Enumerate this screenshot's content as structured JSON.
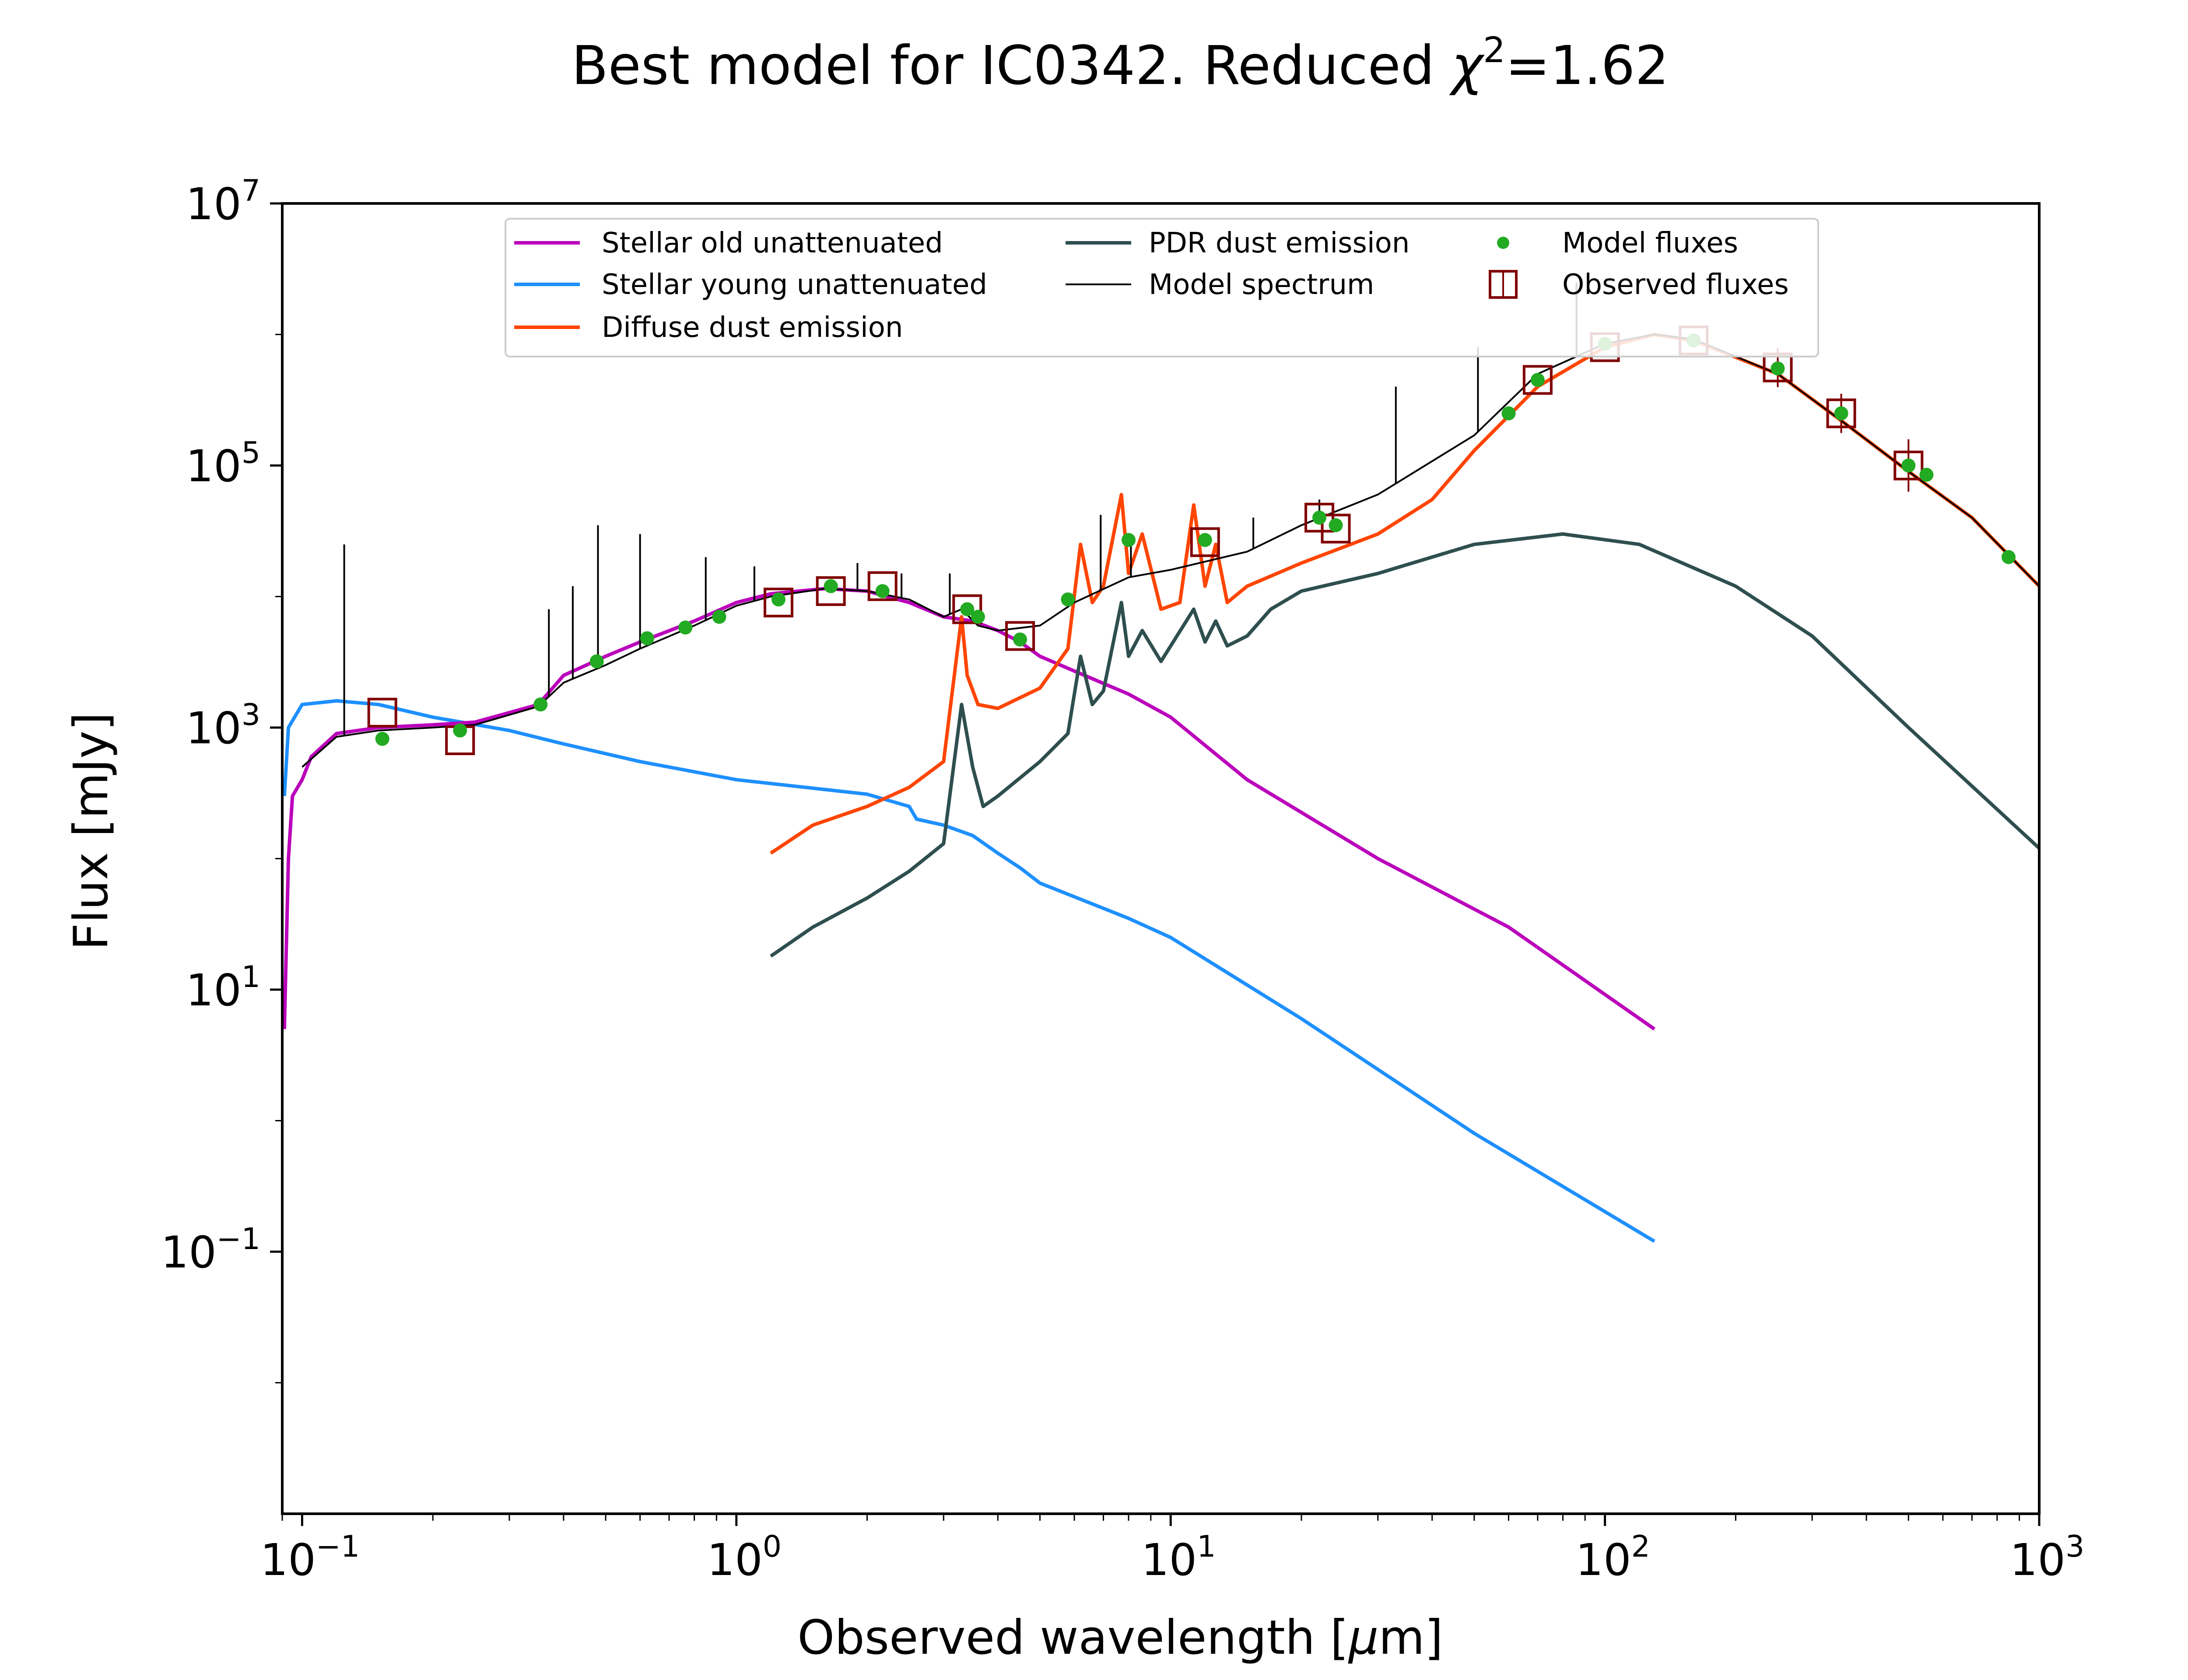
{
  "chart_data": {
    "type": "line",
    "title": "Best model for IC0342. Reduced χ²=1.62",
    "title_parts": {
      "prefix": "Best model for IC0342. Reduced ",
      "symbol": "χ",
      "power": "2",
      "suffix": "=1.62"
    },
    "xlabel": "Observed wavelength [μm]",
    "xlabel_parts": {
      "prefix": "Observed wavelength [",
      "symbol": "μ",
      "suffix": "m]"
    },
    "ylabel": "Flux [mJy]",
    "xscale": "log",
    "yscale": "log",
    "xlim": [
      0.09,
      1000
    ],
    "ylim": [
      0.001,
      10000000
    ],
    "xticks": [
      {
        "value": 0.1,
        "base": "10",
        "exp": "−1"
      },
      {
        "value": 1,
        "base": "10",
        "exp": "0"
      },
      {
        "value": 10,
        "base": "10",
        "exp": "1"
      },
      {
        "value": 100,
        "base": "10",
        "exp": "2"
      },
      {
        "value": 1000,
        "base": "10",
        "exp": "3"
      }
    ],
    "yticks": [
      {
        "value": 0.1,
        "base": "10",
        "exp": "−1"
      },
      {
        "value": 10,
        "base": "10",
        "exp": "1"
      },
      {
        "value": 1000,
        "base": "10",
        "exp": "3"
      },
      {
        "value": 100000,
        "base": "10",
        "exp": "5"
      },
      {
        "value": 10000000,
        "base": "10",
        "exp": "7"
      }
    ],
    "grid": false,
    "legend_position": "top-center",
    "legend": [
      {
        "label": "Stellar old unattenuated",
        "type": "line",
        "color": "#bb00bb"
      },
      {
        "label": "Stellar young unattenuated",
        "type": "line",
        "color": "#1e90ff"
      },
      {
        "label": "Diffuse dust emission",
        "type": "line",
        "color": "#ff4500"
      },
      {
        "label": "PDR dust emission",
        "type": "line",
        "color": "#2f4f4f"
      },
      {
        "label": "Model spectrum",
        "type": "line",
        "color": "#000000"
      },
      {
        "label": "Model fluxes",
        "type": "dot",
        "color": "#22aa22"
      },
      {
        "label": "Observed fluxes",
        "type": "square",
        "color": "#800000"
      }
    ],
    "series": [
      {
        "name": "Stellar old unattenuated",
        "color": "#bb00bb",
        "points": [
          [
            0.091,
            5
          ],
          [
            0.093,
            100
          ],
          [
            0.095,
            300
          ],
          [
            0.1,
            400
          ],
          [
            0.105,
            600
          ],
          [
            0.12,
            900
          ],
          [
            0.15,
            1000
          ],
          [
            0.2,
            1050
          ],
          [
            0.25,
            1100
          ],
          [
            0.3,
            1300
          ],
          [
            0.35,
            1500
          ],
          [
            0.4,
            2500
          ],
          [
            0.5,
            3500
          ],
          [
            0.6,
            4500
          ],
          [
            0.8,
            6500
          ],
          [
            1.0,
            9000
          ],
          [
            1.2,
            10500
          ],
          [
            1.6,
            11500
          ],
          [
            2.0,
            11000
          ],
          [
            2.5,
            9000
          ],
          [
            3.0,
            7000
          ],
          [
            3.5,
            6500
          ],
          [
            4.0,
            5500
          ],
          [
            4.5,
            4500
          ],
          [
            5.0,
            3500
          ],
          [
            6.0,
            2700
          ],
          [
            8.0,
            1800
          ],
          [
            10,
            1200
          ],
          [
            15,
            400
          ],
          [
            30,
            100
          ],
          [
            60,
            30
          ],
          [
            130,
            5
          ]
        ]
      },
      {
        "name": "Stellar young unattenuated",
        "color": "#1e90ff",
        "points": [
          [
            0.091,
            300
          ],
          [
            0.093,
            1000
          ],
          [
            0.1,
            1500
          ],
          [
            0.12,
            1600
          ],
          [
            0.15,
            1500
          ],
          [
            0.2,
            1200
          ],
          [
            0.3,
            950
          ],
          [
            0.4,
            750
          ],
          [
            0.6,
            550
          ],
          [
            1.0,
            400
          ],
          [
            2.0,
            310
          ],
          [
            2.5,
            250
          ],
          [
            2.6,
            200
          ],
          [
            3.0,
            180
          ],
          [
            3.5,
            150
          ],
          [
            4.0,
            110
          ],
          [
            4.5,
            85
          ],
          [
            5.0,
            65
          ],
          [
            8.0,
            35
          ],
          [
            10,
            25
          ],
          [
            20,
            6
          ],
          [
            50,
            0.8
          ],
          [
            130,
            0.12
          ]
        ]
      },
      {
        "name": "Diffuse dust emission",
        "color": "#ff4500",
        "points": [
          [
            1.2,
            110
          ],
          [
            1.5,
            180
          ],
          [
            2.0,
            250
          ],
          [
            2.5,
            350
          ],
          [
            3.0,
            550
          ],
          [
            3.3,
            7000
          ],
          [
            3.4,
            2500
          ],
          [
            3.6,
            1500
          ],
          [
            4.0,
            1400
          ],
          [
            5.0,
            2000
          ],
          [
            5.8,
            4000
          ],
          [
            6.2,
            25000
          ],
          [
            6.6,
            9000
          ],
          [
            7.0,
            12000
          ],
          [
            7.7,
            60000
          ],
          [
            8.0,
            15000
          ],
          [
            8.6,
            30000
          ],
          [
            9.5,
            8000
          ],
          [
            10.5,
            9000
          ],
          [
            11.3,
            50000
          ],
          [
            12,
            12000
          ],
          [
            12.7,
            25000
          ],
          [
            13.5,
            9000
          ],
          [
            15,
            12000
          ],
          [
            20,
            18000
          ],
          [
            30,
            30000
          ],
          [
            40,
            55000
          ],
          [
            50,
            130000
          ],
          [
            70,
            400000
          ],
          [
            100,
            800000
          ],
          [
            130,
            1000000
          ],
          [
            160,
            900000
          ],
          [
            250,
            500000
          ],
          [
            350,
            220000
          ],
          [
            500,
            90000
          ],
          [
            700,
            40000
          ],
          [
            1000,
            12000
          ]
        ]
      },
      {
        "name": "PDR dust emission",
        "color": "#2f4f4f",
        "points": [
          [
            1.2,
            18
          ],
          [
            1.5,
            30
          ],
          [
            2.0,
            50
          ],
          [
            2.5,
            80
          ],
          [
            3.0,
            130
          ],
          [
            3.3,
            1500
          ],
          [
            3.5,
            500
          ],
          [
            3.7,
            250
          ],
          [
            4.0,
            300
          ],
          [
            5.0,
            550
          ],
          [
            5.8,
            900
          ],
          [
            6.2,
            3500
          ],
          [
            6.6,
            1500
          ],
          [
            7.0,
            1900
          ],
          [
            7.7,
            9000
          ],
          [
            8.0,
            3500
          ],
          [
            8.6,
            5500
          ],
          [
            9.5,
            3200
          ],
          [
            11.3,
            8000
          ],
          [
            12,
            4500
          ],
          [
            12.7,
            6500
          ],
          [
            13.5,
            4200
          ],
          [
            15,
            5000
          ],
          [
            17,
            8000
          ],
          [
            20,
            11000
          ],
          [
            30,
            15000
          ],
          [
            50,
            25000
          ],
          [
            80,
            30000
          ],
          [
            120,
            25000
          ],
          [
            200,
            12000
          ],
          [
            300,
            5000
          ],
          [
            500,
            1000
          ],
          [
            1000,
            120
          ]
        ]
      },
      {
        "name": "Model spectrum",
        "color": "#000000",
        "points": [
          [
            0.1,
            500
          ],
          [
            0.12,
            850
          ],
          [
            0.15,
            950
          ],
          [
            0.2,
            1000
          ],
          [
            0.25,
            1050
          ],
          [
            0.3,
            1250
          ],
          [
            0.35,
            1450
          ],
          [
            0.4,
            2200
          ],
          [
            0.5,
            3000
          ],
          [
            0.6,
            4000
          ],
          [
            0.8,
            6000
          ],
          [
            1.0,
            8500
          ],
          [
            1.2,
            10000
          ],
          [
            1.6,
            11500
          ],
          [
            2.0,
            11000
          ],
          [
            2.5,
            9500
          ],
          [
            3.0,
            7000
          ],
          [
            3.3,
            8000
          ],
          [
            3.6,
            6000
          ],
          [
            4.0,
            5500
          ],
          [
            5.0,
            6000
          ],
          [
            6.0,
            9000
          ],
          [
            8.0,
            14000
          ],
          [
            10,
            16000
          ],
          [
            15,
            22000
          ],
          [
            20,
            35000
          ],
          [
            30,
            60000
          ],
          [
            50,
            170000
          ],
          [
            70,
            500000
          ],
          [
            100,
            850000
          ],
          [
            130,
            1000000
          ],
          [
            160,
            920000
          ],
          [
            250,
            500000
          ],
          [
            350,
            220000
          ],
          [
            500,
            90000
          ],
          [
            700,
            40000
          ],
          [
            1000,
            12000
          ]
        ],
        "lines": [
          [
            0.125,
            25000
          ],
          [
            0.37,
            8000
          ],
          [
            0.42,
            12000
          ],
          [
            0.48,
            35000
          ],
          [
            0.6,
            30000
          ],
          [
            0.85,
            20000
          ],
          [
            1.1,
            17000
          ],
          [
            1.9,
            18000
          ],
          [
            2.4,
            15000
          ],
          [
            3.1,
            15000
          ],
          [
            6.9,
            42000
          ],
          [
            8.1,
            28000
          ],
          [
            15.5,
            40000
          ],
          [
            22,
            55000
          ],
          [
            33,
            400000
          ],
          [
            51,
            800000
          ],
          [
            86,
            2500000
          ]
        ]
      }
    ],
    "model_fluxes": [
      [
        0.153,
        820
      ],
      [
        0.231,
        950
      ],
      [
        0.354,
        1500
      ],
      [
        0.477,
        3200
      ],
      [
        0.623,
        4800
      ],
      [
        0.763,
        5800
      ],
      [
        0.913,
        7000
      ],
      [
        1.25,
        9500
      ],
      [
        1.65,
        12000
      ],
      [
        2.17,
        11000
      ],
      [
        3.4,
        8000
      ],
      [
        3.6,
        7000
      ],
      [
        4.5,
        4700
      ],
      [
        5.8,
        9500
      ],
      [
        8.0,
        27000
      ],
      [
        12,
        27000
      ],
      [
        22,
        40000
      ],
      [
        24,
        35000
      ],
      [
        60,
        250000
      ],
      [
        70,
        450000
      ],
      [
        100,
        850000
      ],
      [
        160,
        900000
      ],
      [
        250,
        550000
      ],
      [
        350,
        250000
      ],
      [
        500,
        100000
      ],
      [
        550,
        85000
      ],
      [
        850,
        20000
      ]
    ],
    "observed_fluxes": [
      {
        "x": 0.153,
        "y": 1300,
        "err": 0
      },
      {
        "x": 0.231,
        "y": 800,
        "err": 0
      },
      {
        "x": 1.25,
        "y": 9000,
        "err": 0
      },
      {
        "x": 1.65,
        "y": 11000,
        "err": 0
      },
      {
        "x": 2.17,
        "y": 12000,
        "err": 0
      },
      {
        "x": 3.4,
        "y": 8000,
        "err": 0
      },
      {
        "x": 4.5,
        "y": 5000,
        "err": 0
      },
      {
        "x": 12,
        "y": 26000,
        "err": 0
      },
      {
        "x": 22,
        "y": 40000,
        "err": 0
      },
      {
        "x": 24,
        "y": 33000,
        "err": 0
      },
      {
        "x": 70,
        "y": 450000,
        "err": 0
      },
      {
        "x": 100,
        "y": 800000,
        "err": 0
      },
      {
        "x": 160,
        "y": 900000,
        "err": 0
      },
      {
        "x": 250,
        "y": 560000,
        "err": 0.15
      },
      {
        "x": 350,
        "y": 250000,
        "err": 0.15
      },
      {
        "x": 500,
        "y": 100000,
        "err": 0.2
      }
    ]
  }
}
